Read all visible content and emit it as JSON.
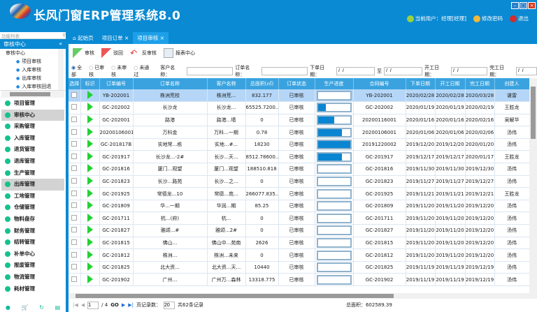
{
  "app": {
    "title": "长风门窗ERP管理系统8.0",
    "window_buttons": [
      "minimize",
      "maximize",
      "close"
    ],
    "user": "当前用户：经理[经理]",
    "change_password": "修改密码",
    "logout": "退出"
  },
  "sidebar": {
    "header": "功能列表",
    "pin": "♀",
    "section": "审核中心",
    "collapse": "«",
    "tree_root": "审核中心",
    "tree_items": [
      "项目审核",
      "入库审核",
      "出库审核",
      "入库审核回退"
    ],
    "menu": [
      {
        "label": "项目管理"
      },
      {
        "label": "审核中心",
        "selected": true
      },
      {
        "label": "采购管理"
      },
      {
        "label": "入库管理"
      },
      {
        "label": "退货管理"
      },
      {
        "label": "退库管理"
      },
      {
        "label": "生产管理"
      },
      {
        "label": "出库管理",
        "selected": true
      },
      {
        "label": "工地管理"
      },
      {
        "label": "仓储管理"
      },
      {
        "label": "物料盘存"
      },
      {
        "label": "财务管理"
      },
      {
        "label": "结转管理"
      },
      {
        "label": "补单中心"
      },
      {
        "label": "报废管理"
      },
      {
        "label": "物流管理"
      },
      {
        "label": "耗材管理"
      }
    ]
  },
  "tabs": [
    {
      "label": "起始页"
    },
    {
      "label": "项目订单",
      "close": "×"
    },
    {
      "label": "项目审核",
      "close": "×",
      "active": true
    }
  ],
  "toolbar": {
    "approve": "审核",
    "reject": "驳回",
    "unapprove": "反审核",
    "report": "报表中心"
  },
  "filter": {
    "radios": [
      "全部",
      "已审核",
      "未审核",
      "未通过"
    ],
    "selected": "全部",
    "customer_label": "客户名称：",
    "customer_value": "",
    "order_label": "订单名称：",
    "order_value": "",
    "order_date_label": "下单日期：",
    "date_placeholder": " /  / ",
    "to": "至",
    "start_label": "开工日期：",
    "finish_label": "完工日期："
  },
  "columns": [
    "选择",
    "标识",
    "订单编号",
    "订单名称",
    "客户名称",
    "总面积(㎡)",
    "订单状态",
    "生产进度",
    "合同编号",
    "下单日期",
    "开工日期",
    "完工日期",
    "创建人"
  ],
  "rows": [
    [
      "YB-202001",
      "株洲荒校",
      "株洲荒...",
      "832.177",
      "已审核",
      0,
      "YB-202001",
      "2020/02/28",
      "2020/02/28",
      "2020/03/28",
      "谌雷"
    ],
    [
      "GC-202002",
      "长沙龙",
      "长沙龙...",
      "65525.7200...",
      "已审核",
      0.25,
      "GC-202002",
      "2020/01/19",
      "2020/01/19",
      "2020/02/19",
      "王胜龙"
    ],
    [
      "GC-202001",
      "路港",
      "路港...墙",
      "0",
      "已审核",
      0.5,
      "20200116001",
      "2020/01/16",
      "2020/01/16",
      "2020/02/16",
      "吴解华"
    ],
    [
      "20200106001",
      "万科金",
      "万科...一期",
      "0.78",
      "已审核",
      0.75,
      "20200106001",
      "2020/01/06",
      "2020/01/06",
      "2020/02/06",
      "汤伟"
    ],
    [
      "GC-201817B",
      "实地常...栋",
      "实地...#...",
      "18230",
      "已审核",
      1,
      "20191220002",
      "2019/12/20",
      "2019/12/20",
      "2020/01/20",
      "汤伟"
    ],
    [
      "GC-201917",
      "长沙龙...-2#",
      "长沙...天...",
      "8512.78600...",
      "已审核",
      0.75,
      "GC-201917",
      "2019/12/17",
      "2019/12/17",
      "2020/01/17",
      "王胜龙"
    ],
    [
      "GC-201816",
      "厦门...观望",
      "厦门...观望",
      "188510.818",
      "已审核",
      0,
      "GC-201816",
      "2019/11/30",
      "2019/11/30",
      "2019/12/30",
      "汤伟"
    ],
    [
      "GC-201823",
      "长沙...路苑",
      "长沙...之...",
      "0",
      "已审核",
      0,
      "GC-201823",
      "2019/11/27",
      "2019/11/27",
      "2019/12/27",
      "汤伟"
    ],
    [
      "GC-201925",
      "常德龙...10",
      "常德...苑...",
      "266077.835...",
      "已审核",
      0,
      "GC-201925",
      "2019/11/21",
      "2019/11/21",
      "2019/12/21",
      "王胜龙"
    ],
    [
      "GC-201809",
      "华...一期",
      "华润...期",
      "85.25",
      "已审核",
      0,
      "GC-201809",
      "2019/11/20",
      "2019/11/20",
      "2019/12/20",
      "汤伟"
    ],
    [
      "GC-201711",
      "杭...(府)",
      "杭...",
      "0",
      "已审核",
      0,
      "GC-201711",
      "2019/11/20",
      "2019/11/20",
      "2019/12/20",
      "汤伟"
    ],
    [
      "GC-201827",
      "雅颂...#",
      "雅颂...2#",
      "0",
      "已审核",
      0,
      "GC-201827",
      "2019/11/20",
      "2019/11/20",
      "2019/12/20",
      "汤伟"
    ],
    [
      "GC-201815",
      "佛山...",
      "佛山中...苑南",
      "2626",
      "已审核",
      0,
      "GC-201815",
      "2019/11/20",
      "2019/11/20",
      "2019/12/20",
      "汤伟"
    ],
    [
      "GC-201812",
      "株洲...",
      "株洲...未来",
      "0",
      "已审核",
      0,
      "GC-201812",
      "2019/11/20",
      "2019/11/20",
      "2019/12/20",
      "汤伟"
    ],
    [
      "GC-201825",
      "北大资...",
      "北大资...天...",
      "10440",
      "已审核",
      0,
      "GC-201825",
      "2019/11/19",
      "2019/11/19",
      "2019/12/19",
      "汤伟"
    ],
    [
      "GC-201902",
      "广州...",
      "广州万...森林",
      "13318.775",
      "已审核",
      0,
      "GC-201902",
      "2019/11/19",
      "2019/11/19",
      "2019/12/19",
      "汤伟"
    ]
  ],
  "pager": {
    "page": "1",
    "total_pages": "/ 4",
    "go": "GO",
    "page_size_label": "页记录数：",
    "page_size": "20",
    "total": "共62条记录",
    "total_area": "总面积：602589.39"
  },
  "colors": {
    "brand": "#0a8ad3",
    "header_row": "#3aa3df",
    "progress": "#0a85d1",
    "flag": "#21d233"
  }
}
